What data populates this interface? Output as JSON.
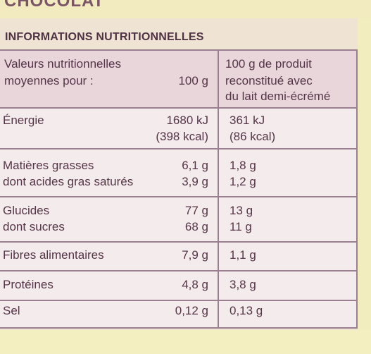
{
  "brand": "CHOCOLAT",
  "heading": "INFORMATIONS NUTRITIONNELLES",
  "header": {
    "label_line1": "Valeurs nutritionnelles",
    "label_line2": "moyennes pour :",
    "col1": "100 g",
    "col2_line1": "100 g de produit",
    "col2_line2": "reconstitué avec",
    "col2_line3": "du lait demi-écrémé"
  },
  "rows": {
    "energie": {
      "label": "Énergie",
      "v1a": "1680 kJ",
      "v1b": "(398 kcal)",
      "v2a": "361 kJ",
      "v2b": "(86 kcal)"
    },
    "matieres": {
      "label": "Matières grasses",
      "v1": "6,1 g",
      "v2": "1,8 g"
    },
    "satures": {
      "label": "dont acides gras saturés",
      "v1": "3,9 g",
      "v2": "1,2 g"
    },
    "glucides": {
      "label": "Glucides",
      "v1": "77 g",
      "v2": "13 g"
    },
    "sucres": {
      "label": "dont sucres",
      "v1": "68 g",
      "v2": "11 g"
    },
    "fibres": {
      "label": "Fibres alimentaires",
      "v1": "7,9 g",
      "v2": "1,1 g"
    },
    "proteines": {
      "label": "Protéines",
      "v1": "4,8 g",
      "v2": "3,8 g"
    },
    "sel": {
      "label": "Sel",
      "v1": "0,12 g",
      "v2": "0,13 g"
    }
  }
}
